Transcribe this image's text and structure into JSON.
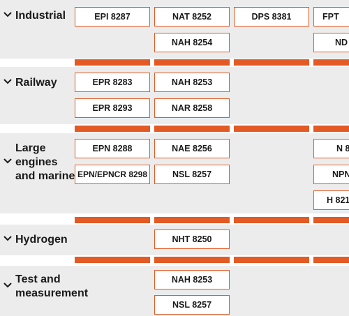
{
  "colors": {
    "accent": "#e35a24",
    "panel": "#ececec"
  },
  "icons": {
    "expand": "chevron-down-icon"
  },
  "sections": [
    {
      "label": "Industrial",
      "products": [
        "EPI 8287",
        "NAT 8252",
        "DPS 8381",
        "FPT",
        "NAH 8254",
        "ND"
      ]
    },
    {
      "label": "Railway",
      "products": [
        "EPR 8283",
        "NAH 8253",
        "EPR 8293",
        "NAR 8258"
      ]
    },
    {
      "label_lines": [
        "Large",
        "engines",
        "and marine"
      ],
      "products": [
        "EPN 8288",
        "NAE 8256",
        "N 8",
        "EPN/EPNCR 8298",
        "NSL 8257",
        "NPN",
        "H 821"
      ]
    },
    {
      "label": "Hydrogen",
      "products": [
        "NHT 8250"
      ]
    },
    {
      "label_lines": [
        "Test and",
        "measurement"
      ],
      "products": [
        "NAH 8253",
        "NSL 8257"
      ]
    }
  ]
}
